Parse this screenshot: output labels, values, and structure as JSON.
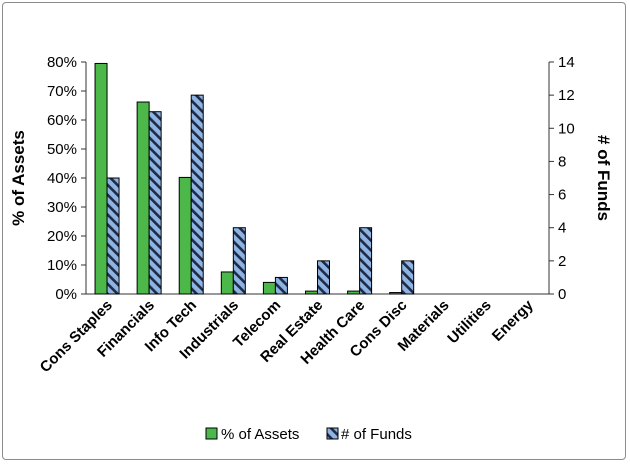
{
  "chart_data": {
    "type": "bar",
    "categories": [
      "Cons Staples",
      "Financials",
      "Info Tech",
      "Industrials",
      "Telecom",
      "Real Estate",
      "Health Care",
      "Cons Disc",
      "Materials",
      "Utilities",
      "Energy"
    ],
    "series": [
      {
        "name": "% of Assets",
        "axis": "left",
        "unit": "%",
        "color": "#4db84a",
        "values": [
          79.5,
          66.2,
          40.2,
          7.6,
          4.0,
          1.0,
          1.0,
          0.5,
          0,
          0,
          0
        ]
      },
      {
        "name": "# of Funds",
        "axis": "right",
        "color": "#8eb4e3",
        "pattern": "diagonal-stripes",
        "values": [
          7,
          11,
          12,
          4,
          1,
          2,
          4,
          2,
          0,
          0,
          0
        ]
      }
    ],
    "y_left": {
      "label": "% of Assets",
      "ylim": [
        0,
        80
      ],
      "ticks": [
        "0%",
        "10%",
        "20%",
        "30%",
        "40%",
        "50%",
        "60%",
        "70%",
        "80%"
      ]
    },
    "y_right": {
      "label": "# of Funds",
      "ylim": [
        0,
        14
      ],
      "ticks": [
        "0",
        "2",
        "4",
        "6",
        "8",
        "10",
        "12",
        "14"
      ]
    },
    "grid": false,
    "legend": "bottom"
  }
}
